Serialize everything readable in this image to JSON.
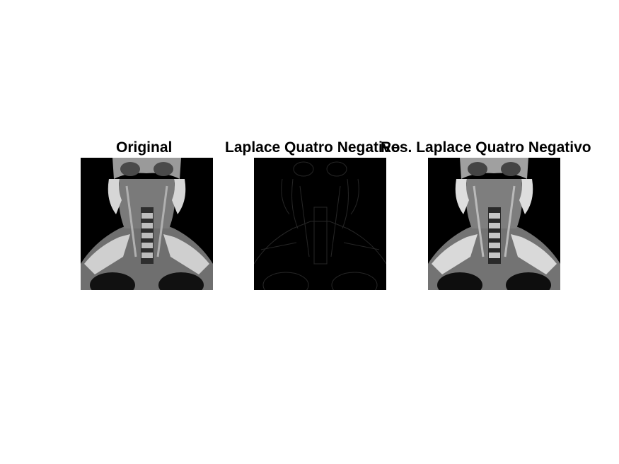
{
  "figure": {
    "panels": [
      {
        "title": "Original",
        "kind": "mri-original"
      },
      {
        "title": "Laplace Quatro Negativo",
        "kind": "laplacian-edges"
      },
      {
        "title": "Res. Laplace Quatro Negativo",
        "kind": "mri-sharpened"
      }
    ]
  },
  "colors": {
    "background": "#ffffff",
    "image_background": "#000000",
    "tissue_bright": "#d9d9d9",
    "tissue_mid": "#8a8a8a",
    "tissue_dark": "#3a3a3a",
    "edge_faint": "#262626"
  }
}
